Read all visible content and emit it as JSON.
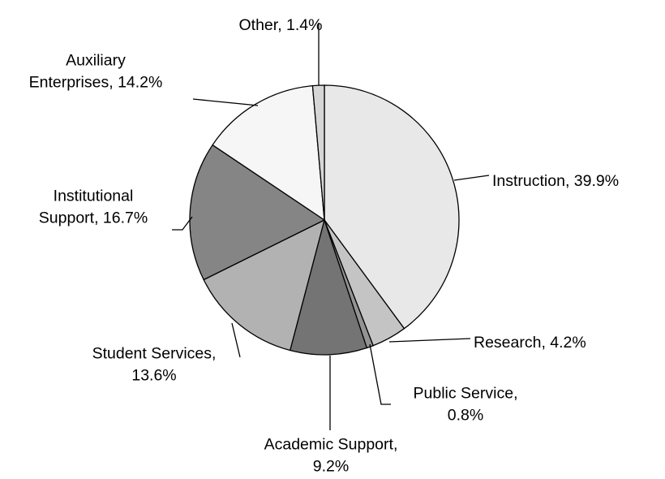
{
  "chart_data": {
    "type": "pie",
    "title": "",
    "start_angle_deg": 0,
    "direction": "clockwise",
    "slices": [
      {
        "label": "Instruction, 39.9%",
        "lines": [
          "Instruction, 39.9%"
        ],
        "value": 39.9,
        "color": "#e8e8e8"
      },
      {
        "label": "Research, 4.2%",
        "lines": [
          "Research, 4.2%"
        ],
        "value": 4.2,
        "color": "#c4c4c4"
      },
      {
        "label": "Public Service, 0.8%",
        "lines": [
          "Public Service,",
          "0.8%"
        ],
        "value": 0.8,
        "color": "#939393"
      },
      {
        "label": "Academic Support, 9.2%",
        "lines": [
          "Academic Support,",
          "9.2%"
        ],
        "value": 9.2,
        "color": "#747474"
      },
      {
        "label": "Student Services, 13.6%",
        "lines": [
          "Student Services,",
          "13.6%"
        ],
        "value": 13.6,
        "color": "#b2b2b2"
      },
      {
        "label": "Institutional Support, 16.7%",
        "lines": [
          "Institutional",
          "Support, 16.7%"
        ],
        "value": 16.7,
        "color": "#858585"
      },
      {
        "label": "Auxiliary Enterprises, 14.2%",
        "lines": [
          "Auxiliary",
          "Enterprises, 14.2%"
        ],
        "value": 14.2,
        "color": "#f6f6f6"
      },
      {
        "label": "Other, 1.4%",
        "lines": [
          "Other, 1.4%"
        ],
        "value": 1.4,
        "color": "#d6d6d6"
      }
    ]
  }
}
